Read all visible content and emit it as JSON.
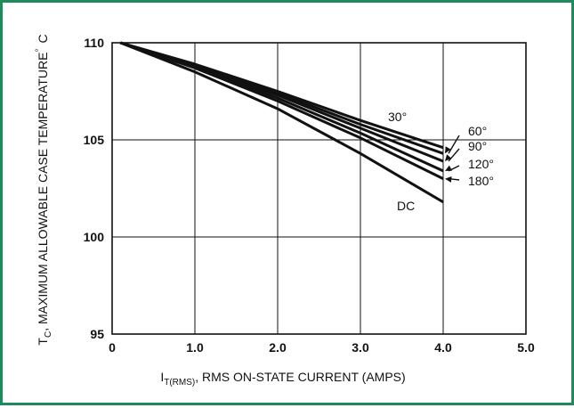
{
  "chart_data": {
    "type": "line",
    "xlabel": {
      "prefix": "I",
      "subscript": "T(RMS)",
      "suffix": ", RMS ON-STATE CURRENT (AMPS)"
    },
    "ylabel": {
      "prefix": "T",
      "subscript": "C",
      "suffix": ", MAXIMUM ALLOWABLE CASE TEMPERATURE",
      "degree": "°",
      "unit": "C"
    },
    "xlim": [
      0,
      5.0
    ],
    "ylim": [
      95,
      110
    ],
    "xticks": [
      0,
      1.0,
      2.0,
      3.0,
      4.0,
      5.0
    ],
    "xtick_labels": [
      "0",
      "1.0",
      "2.0",
      "3.0",
      "4.0",
      "5.0"
    ],
    "yticks": [
      95,
      100,
      105,
      110
    ],
    "ytick_labels": [
      "95",
      "100",
      "105",
      "110"
    ],
    "grid": true,
    "series": [
      {
        "name": "30°",
        "x": [
          0.1,
          1.0,
          2.0,
          3.0,
          4.0
        ],
        "y": [
          110,
          108.9,
          107.5,
          106.0,
          104.6
        ]
      },
      {
        "name": "60°",
        "x": [
          0.1,
          1.0,
          2.0,
          3.0,
          4.0
        ],
        "y": [
          110,
          108.85,
          107.4,
          105.8,
          104.3
        ]
      },
      {
        "name": "90°",
        "x": [
          0.1,
          1.0,
          2.0,
          3.0,
          4.0
        ],
        "y": [
          110,
          108.8,
          107.3,
          105.6,
          103.9
        ]
      },
      {
        "name": "120°",
        "x": [
          0.1,
          1.0,
          2.0,
          3.0,
          4.0
        ],
        "y": [
          110,
          108.75,
          107.15,
          105.35,
          103.4
        ]
      },
      {
        "name": "180°",
        "x": [
          0.1,
          1.0,
          2.0,
          3.0,
          4.0
        ],
        "y": [
          110,
          108.7,
          107.0,
          105.1,
          103.0
        ]
      },
      {
        "name": "DC",
        "x": [
          0.1,
          1.0,
          2.0,
          3.0,
          4.0
        ],
        "y": [
          110,
          108.5,
          106.6,
          104.3,
          101.8
        ]
      }
    ]
  }
}
